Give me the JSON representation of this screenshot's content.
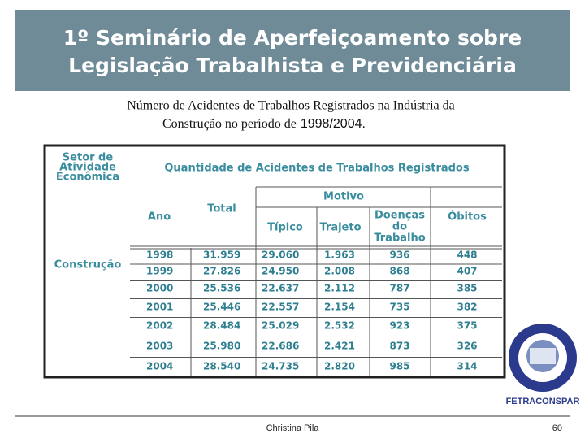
{
  "header": {
    "title": [
      "1º Seminário de Aperfeiçoamento sobre",
      "Legislação Trabalhista e Previdenciária"
    ]
  },
  "subtitle": {
    "line1": "Número de Acidentes de Trabalhos Registrados na Indústria da",
    "line2": "Construção no período de",
    "period": "1998/2004."
  },
  "table": {
    "sector_header": [
      "Setor de",
      "Atividade",
      "Econômica"
    ],
    "main_header": "Quantidade de Acidentes de Trabalhos Registrados",
    "columns": {
      "year": "Ano",
      "total": "Total",
      "motive": "Motivo",
      "typical": "Típico",
      "commute": "Trajeto",
      "disease": [
        "Doenças",
        "do",
        "Trabalho"
      ],
      "deaths": "Óbitos"
    },
    "sector": "Construção",
    "rows": [
      [
        "1998",
        "31.959",
        "29.060",
        "1.963",
        "936",
        "448"
      ],
      [
        "1999",
        "27.826",
        "24.950",
        "2.008",
        "868",
        "407"
      ],
      [
        "2000",
        "25.536",
        "22.637",
        "2.112",
        "787",
        "385"
      ],
      [
        "2001",
        "25.446",
        "22.557",
        "2.154",
        "735",
        "382"
      ],
      [
        "2002",
        "28.484",
        "25.029",
        "2.532",
        "923",
        "375"
      ],
      [
        "2003",
        "25.980",
        "22.686",
        "2.421",
        "873",
        "326"
      ],
      [
        "2004",
        "28.540",
        "24.735",
        "2.820",
        "985",
        "314"
      ]
    ]
  },
  "logo": {
    "name": "FETRACONSPAR"
  },
  "footer": {
    "author": "Christina Pila",
    "page": "60"
  }
}
